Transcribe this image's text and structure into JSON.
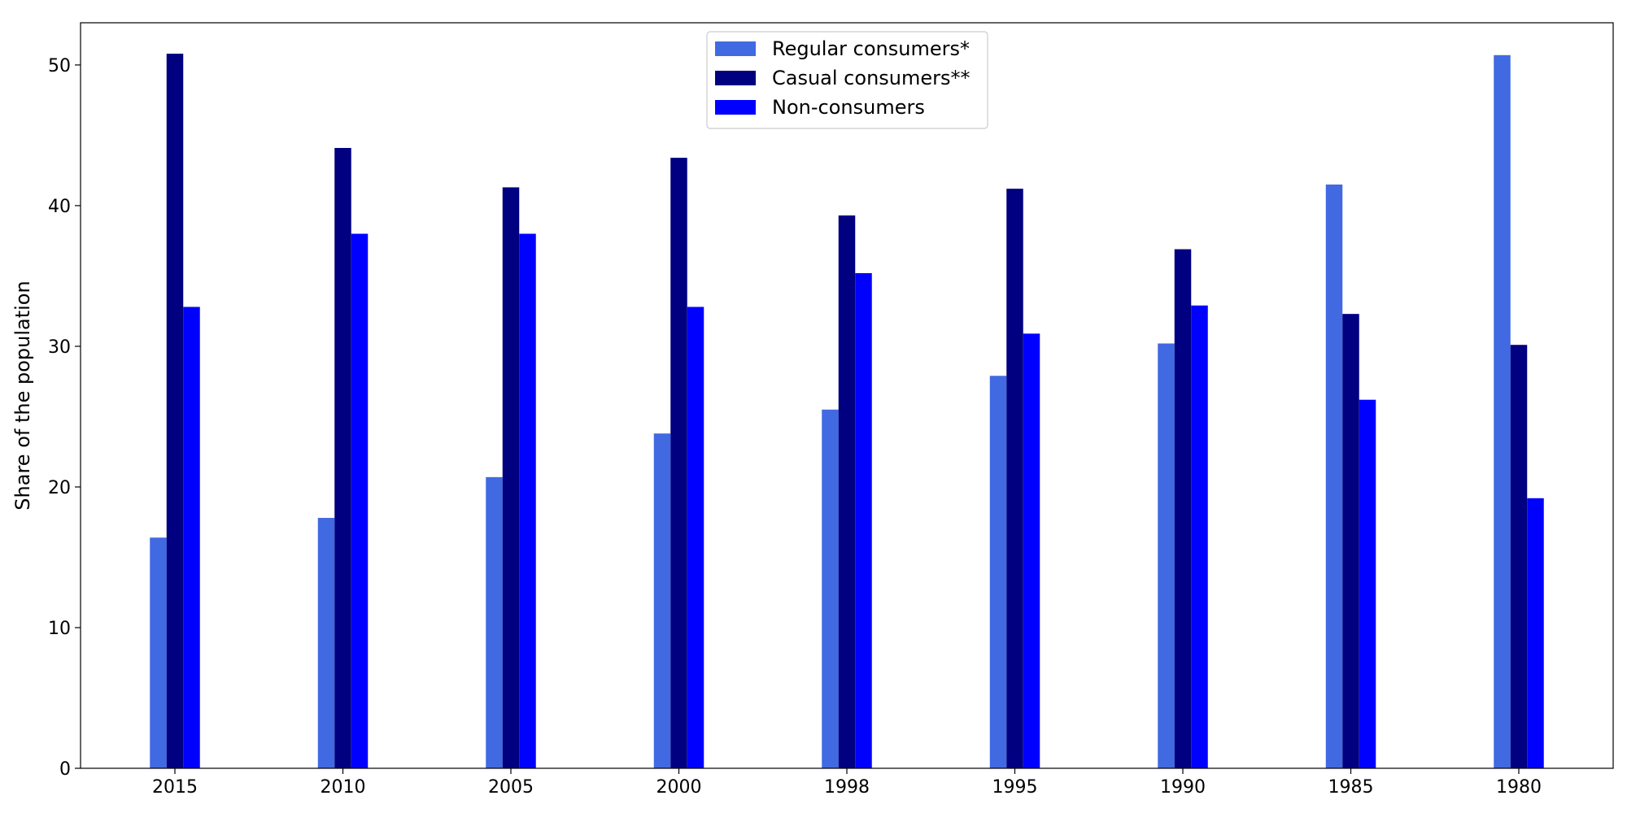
{
  "chart_data": {
    "type": "bar",
    "title": "",
    "xlabel": "",
    "ylabel": "Share of the population",
    "ylim": [
      0,
      53
    ],
    "yticks": [
      0,
      10,
      20,
      30,
      40,
      50
    ],
    "grid": false,
    "legend_position": "top-center",
    "categories": [
      "2015",
      "2010",
      "2005",
      "2000",
      "1998",
      "1995",
      "1990",
      "1985",
      "1980"
    ],
    "series": [
      {
        "name": "Regular consumers*",
        "color": "#4169e1",
        "values": [
          16.4,
          17.8,
          20.7,
          23.8,
          25.5,
          27.9,
          30.2,
          41.5,
          50.7
        ]
      },
      {
        "name": "Casual consumers**",
        "color": "#000080",
        "values": [
          50.8,
          44.1,
          41.3,
          43.4,
          39.3,
          41.2,
          36.9,
          32.3,
          30.1
        ]
      },
      {
        "name": "Non-consumers",
        "color": "#0000ff",
        "values": [
          32.8,
          38.0,
          38.0,
          32.8,
          35.2,
          30.9,
          32.9,
          26.2,
          19.2
        ]
      }
    ]
  }
}
